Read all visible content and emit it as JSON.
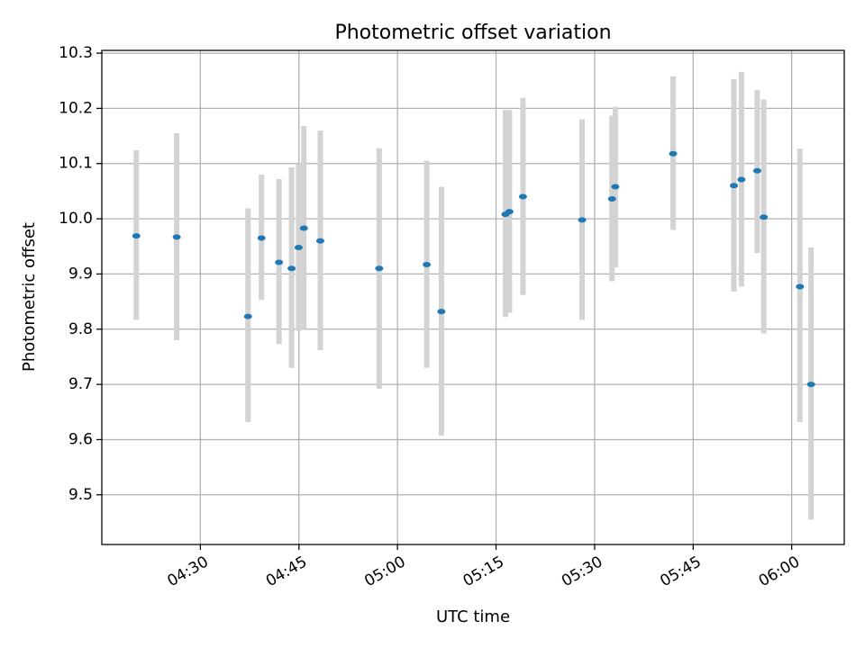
{
  "chart_data": {
    "type": "scatter",
    "title": "Photometric offset variation",
    "xlabel": "UTC time",
    "ylabel": "Photometric offset",
    "xlim": [
      "04:15",
      "06:08"
    ],
    "ylim": [
      9.41,
      10.305
    ],
    "xticks": [
      "04:30",
      "04:45",
      "05:00",
      "05:15",
      "05:30",
      "05:45",
      "06:00"
    ],
    "yticks": [
      "9.5",
      "9.6",
      "9.7",
      "9.8",
      "9.9",
      "10.0",
      "10.1",
      "10.2",
      "10.3"
    ],
    "grid": true,
    "colors": {
      "marker": "#1f77b4",
      "errorbar": "#d3d3d3",
      "grid": "#b0b0b0"
    },
    "points": [
      {
        "x": "04:20:15",
        "y": 9.969,
        "ylow": 9.817,
        "yhigh": 10.124
      },
      {
        "x": "04:26:24",
        "y": 9.967,
        "ylow": 9.78,
        "yhigh": 10.155
      },
      {
        "x": "04:37:15",
        "y": 9.823,
        "ylow": 9.632,
        "yhigh": 10.019
      },
      {
        "x": "04:39:18",
        "y": 9.965,
        "ylow": 9.853,
        "yhigh": 10.08
      },
      {
        "x": "04:41:58",
        "y": 9.921,
        "ylow": 9.773,
        "yhigh": 10.072
      },
      {
        "x": "04:43:53",
        "y": 9.91,
        "ylow": 9.73,
        "yhigh": 10.093
      },
      {
        "x": "04:44:57",
        "y": 9.948,
        "ylow": 9.797,
        "yhigh": 10.1
      },
      {
        "x": "04:45:45",
        "y": 9.983,
        "ylow": 9.8,
        "yhigh": 10.168
      },
      {
        "x": "04:48:15",
        "y": 9.96,
        "ylow": 9.762,
        "yhigh": 10.16
      },
      {
        "x": "04:57:13",
        "y": 9.91,
        "ylow": 9.692,
        "yhigh": 10.128
      },
      {
        "x": "05:04:27",
        "y": 9.917,
        "ylow": 9.73,
        "yhigh": 10.105
      },
      {
        "x": "05:06:41",
        "y": 9.832,
        "ylow": 9.607,
        "yhigh": 10.058
      },
      {
        "x": "05:16:26",
        "y": 10.008,
        "ylow": 9.822,
        "yhigh": 10.197
      },
      {
        "x": "05:17:02",
        "y": 10.013,
        "ylow": 9.83,
        "yhigh": 10.197
      },
      {
        "x": "05:19:06",
        "y": 10.04,
        "ylow": 9.862,
        "yhigh": 10.219
      },
      {
        "x": "05:28:06",
        "y": 9.998,
        "ylow": 9.817,
        "yhigh": 10.18
      },
      {
        "x": "05:32:39",
        "y": 10.036,
        "ylow": 9.887,
        "yhigh": 10.187
      },
      {
        "x": "05:33:09",
        "y": 10.058,
        "ylow": 9.912,
        "yhigh": 10.203
      },
      {
        "x": "05:41:57",
        "y": 10.118,
        "ylow": 9.98,
        "yhigh": 10.258
      },
      {
        "x": "05:51:12",
        "y": 10.06,
        "ylow": 9.868,
        "yhigh": 10.253
      },
      {
        "x": "05:52:21",
        "y": 10.071,
        "ylow": 9.877,
        "yhigh": 10.266
      },
      {
        "x": "05:54:45",
        "y": 10.087,
        "ylow": 9.938,
        "yhigh": 10.233
      },
      {
        "x": "05:55:45",
        "y": 10.003,
        "ylow": 9.792,
        "yhigh": 10.216
      },
      {
        "x": "06:01:15",
        "y": 9.877,
        "ylow": 9.632,
        "yhigh": 10.127
      },
      {
        "x": "06:02:57",
        "y": 9.7,
        "ylow": 9.455,
        "yhigh": 9.948
      }
    ]
  }
}
